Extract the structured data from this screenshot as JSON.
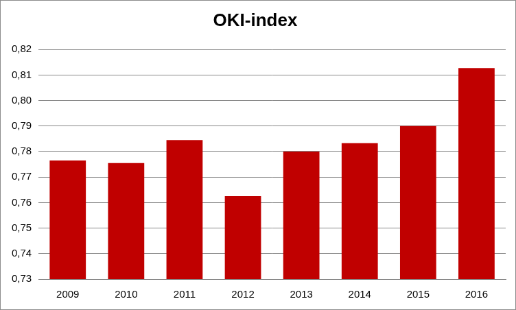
{
  "chart_data": {
    "type": "bar",
    "title": "OKI-index",
    "categories": [
      "2009",
      "2010",
      "2011",
      "2012",
      "2013",
      "2014",
      "2015",
      "2016"
    ],
    "values": [
      0.7765,
      0.7755,
      0.7845,
      0.7625,
      0.78,
      0.7833,
      0.79,
      0.8127
    ],
    "color": "#c00000",
    "ylim": [
      0.73,
      0.82
    ],
    "yticks": [
      {
        "value": 0.73,
        "label": "0,73"
      },
      {
        "value": 0.74,
        "label": "0,74"
      },
      {
        "value": 0.75,
        "label": "0,75"
      },
      {
        "value": 0.76,
        "label": "0,76"
      },
      {
        "value": 0.77,
        "label": "0,77"
      },
      {
        "value": 0.78,
        "label": "0,78"
      },
      {
        "value": 0.79,
        "label": "0,79"
      },
      {
        "value": 0.8,
        "label": "0,80"
      },
      {
        "value": 0.81,
        "label": "0,81"
      },
      {
        "value": 0.82,
        "label": "0,82"
      }
    ],
    "grid": true
  }
}
